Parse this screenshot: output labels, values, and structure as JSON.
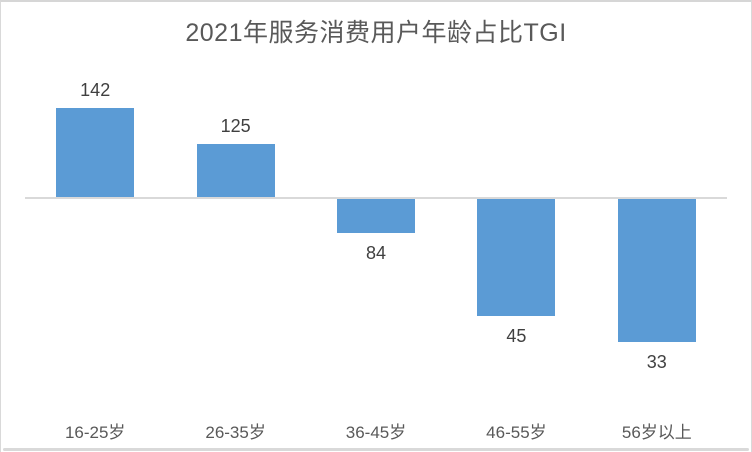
{
  "chart_data": {
    "type": "bar",
    "title": "2021年服务消费用户年龄占比TGI",
    "categories": [
      "16-25岁",
      "26-35岁",
      "36-45岁",
      "46-55岁",
      "56岁以上"
    ],
    "values": [
      142,
      125,
      84,
      45,
      33
    ],
    "baseline": 100,
    "xlabel": "",
    "ylabel": "",
    "data_labels": true,
    "grid": false,
    "legend": "none",
    "bar_color": "#5B9BD5",
    "axis_line_color": "#D9D9D9",
    "title_color": "#595959",
    "value_label_color": "#404040",
    "tick_label_color": "#595959",
    "frame_border_color": "#D9D9D9"
  }
}
